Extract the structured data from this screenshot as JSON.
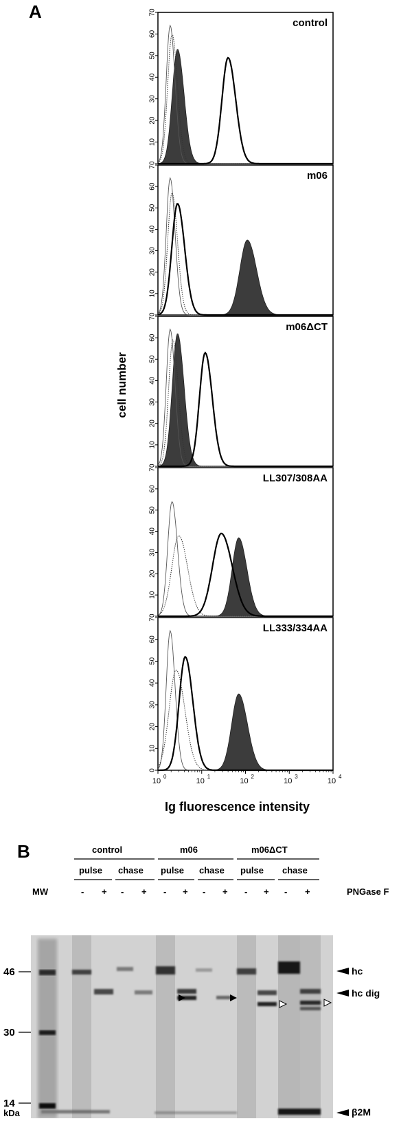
{
  "panel_a": {
    "label": "A",
    "ylabel": "cell number",
    "xlabel": "Ig fluorescence intensity",
    "x_ticks": [
      "10",
      "10",
      "10",
      "10",
      "10"
    ],
    "x_tick_exps": [
      "0",
      "1",
      "2",
      "3",
      "4"
    ],
    "y_ticks": [
      "0",
      "10",
      "20",
      "30",
      "40",
      "50",
      "60",
      "70"
    ],
    "chart_data": {
      "type": "line",
      "x_scale": "log",
      "xlim": [
        1,
        10000
      ],
      "ylim": [
        0,
        70
      ],
      "panels": [
        {
          "title": "control",
          "series": [
            {
              "style": "thin",
              "peak_x": 1.9,
              "peak_y": 64,
              "width": 0.09
            },
            {
              "style": "dotted",
              "peak_x": 2.1,
              "peak_y": 60,
              "width": 0.1
            },
            {
              "style": "filled",
              "peak_x": 2.8,
              "peak_y": 53,
              "width": 0.12
            },
            {
              "style": "bold",
              "peak_x": 40,
              "peak_y": 49,
              "width": 0.14
            }
          ]
        },
        {
          "title": "m06",
          "series": [
            {
              "style": "thin",
              "peak_x": 1.9,
              "peak_y": 64,
              "width": 0.09
            },
            {
              "style": "dotted",
              "peak_x": 2.1,
              "peak_y": 57,
              "width": 0.1
            },
            {
              "style": "bold",
              "peak_x": 2.8,
              "peak_y": 52,
              "width": 0.13
            },
            {
              "style": "filled",
              "peak_x": 110,
              "peak_y": 35,
              "width": 0.17
            }
          ]
        },
        {
          "title": "m06ΔCT",
          "series": [
            {
              "style": "thin",
              "peak_x": 1.9,
              "peak_y": 64,
              "width": 0.09
            },
            {
              "style": "dotted",
              "peak_x": 2.2,
              "peak_y": 59,
              "width": 0.1
            },
            {
              "style": "filled",
              "peak_x": 2.8,
              "peak_y": 62,
              "width": 0.12
            },
            {
              "style": "bold",
              "peak_x": 12,
              "peak_y": 53,
              "width": 0.13
            }
          ]
        },
        {
          "title": "LL307/308AA",
          "series": [
            {
              "style": "thin",
              "peak_x": 2.1,
              "peak_y": 54,
              "width": 0.1
            },
            {
              "style": "dotted",
              "peak_x": 3.0,
              "peak_y": 38,
              "width": 0.16
            },
            {
              "style": "bold",
              "peak_x": 28,
              "peak_y": 39,
              "width": 0.2
            },
            {
              "style": "filled",
              "peak_x": 70,
              "peak_y": 37,
              "width": 0.15
            }
          ]
        },
        {
          "title": "LL333/334AA",
          "series": [
            {
              "style": "thin",
              "peak_x": 1.9,
              "peak_y": 64,
              "width": 0.09
            },
            {
              "style": "dotted",
              "peak_x": 2.6,
              "peak_y": 46,
              "width": 0.16
            },
            {
              "style": "bold",
              "peak_x": 4.2,
              "peak_y": 52,
              "width": 0.14
            },
            {
              "style": "filled",
              "peak_x": 70,
              "peak_y": 35,
              "width": 0.16
            }
          ]
        }
      ]
    }
  },
  "panel_b": {
    "label": "B",
    "groups": [
      "control",
      "m06",
      "m06ΔCT"
    ],
    "conditions": [
      "pulse",
      "chase",
      "pulse",
      "chase",
      "pulse",
      "chase"
    ],
    "mw_label": "MW",
    "signs": [
      "-",
      "+",
      "-",
      "+",
      "-",
      "+",
      "-",
      "+",
      "-",
      "+",
      "-",
      "+"
    ],
    "treatment": "PNGase F",
    "markers": [
      "46",
      "30",
      "14"
    ],
    "unit": "kDa",
    "bands": [
      "hc",
      "hc dig",
      "β2M"
    ]
  }
}
